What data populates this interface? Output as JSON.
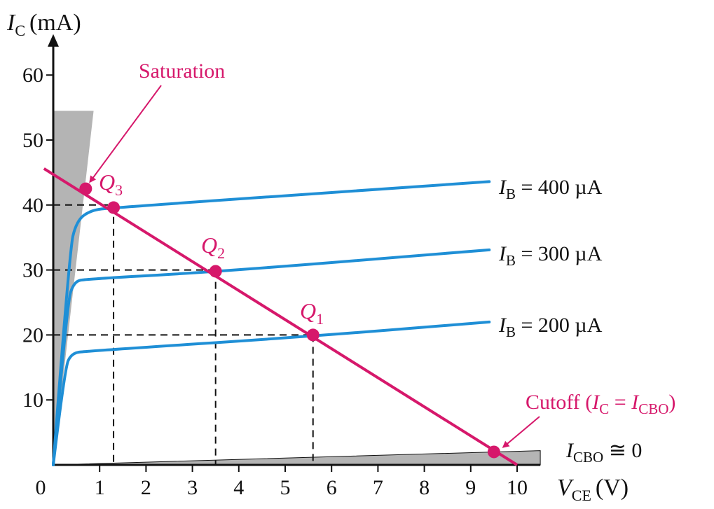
{
  "colors": {
    "curve": "#1f8fd6",
    "load_line": "#d6186b",
    "region_fill": "#b4b4b4",
    "axis": "#111111"
  },
  "chart_data": {
    "type": "line",
    "title": "",
    "x_axis": {
      "label_main": "V",
      "label_sub": "CE",
      "label_unit": "(V)",
      "range": [
        0,
        10.5
      ],
      "ticks": [
        0,
        1,
        2,
        3,
        4,
        5,
        6,
        7,
        8,
        9,
        10
      ],
      "tick_labels": [
        "0",
        "1",
        "2",
        "3",
        "4",
        "5",
        "6",
        "7",
        "8",
        "9",
        "10"
      ]
    },
    "y_axis": {
      "label_main": "I",
      "label_sub": "C",
      "label_unit": "(mA)",
      "range": [
        0,
        65
      ],
      "ticks": [
        10,
        20,
        30,
        40,
        50,
        60
      ],
      "tick_labels": [
        "10",
        "20",
        "30",
        "40",
        "50",
        "60"
      ]
    },
    "grid": false,
    "series": [
      {
        "name": "I_B = 400 µA",
        "label_main": "I",
        "label_sub": "B",
        "label_rest": " = 400 µA",
        "points": [
          [
            0,
            0
          ],
          [
            0.35,
            33
          ],
          [
            0.5,
            37.5
          ],
          [
            0.8,
            39.2
          ],
          [
            1.3,
            39.6
          ],
          [
            9.4,
            43.6
          ]
        ]
      },
      {
        "name": "I_B = 300 µA",
        "label_main": "I",
        "label_sub": "B",
        "label_rest": " = 300 µA",
        "points": [
          [
            0,
            0
          ],
          [
            0.3,
            25
          ],
          [
            0.45,
            28.2
          ],
          [
            0.7,
            28.6
          ],
          [
            3.5,
            29.7
          ],
          [
            9.4,
            33.1
          ]
        ]
      },
      {
        "name": "I_B = 200 µA",
        "label_main": "I",
        "label_sub": "B",
        "label_rest": " = 200 µA",
        "points": [
          [
            0,
            0
          ],
          [
            0.25,
            15
          ],
          [
            0.4,
            17.2
          ],
          [
            0.7,
            17.5
          ],
          [
            5.6,
            19.8
          ],
          [
            9.4,
            22.0
          ]
        ]
      }
    ],
    "load_line": {
      "points": [
        [
          -0.2,
          45.6
        ],
        [
          10.0,
          0.0
        ]
      ]
    },
    "q_points": [
      {
        "main": "Q",
        "sub": "1",
        "x": 5.6,
        "y": 20
      },
      {
        "main": "Q",
        "sub": "2",
        "x": 3.5,
        "y": 29.8
      },
      {
        "main": "Q",
        "sub": "3",
        "x": 1.3,
        "y": 39.6
      }
    ],
    "saturation_point": {
      "x": 0.7,
      "y": 42.5
    },
    "cutoff_point": {
      "x": 9.5,
      "y": 2.0
    },
    "reference_lines": [
      {
        "x": 1.3,
        "y": 40
      },
      {
        "x": 3.5,
        "y": 30
      },
      {
        "x": 5.6,
        "y": 20
      }
    ],
    "saturation_region": [
      [
        0,
        0
      ],
      [
        0,
        54.5
      ],
      [
        0.87,
        54.5
      ],
      [
        0.0,
        0
      ]
    ],
    "cutoff_region": [
      [
        0,
        0
      ],
      [
        10.5,
        2.2
      ],
      [
        10.5,
        0
      ]
    ],
    "annotations": {
      "saturation": "Saturation",
      "cutoff_main": "Cutoff (",
      "cutoff_i1": "I",
      "cutoff_sub1": "C",
      "cutoff_eq": " = ",
      "cutoff_i2": "I",
      "cutoff_sub2": "CBO",
      "cutoff_close": ")",
      "icbo_main": "I",
      "icbo_sub": "CBO",
      "icbo_rest": " ≅ 0"
    }
  }
}
